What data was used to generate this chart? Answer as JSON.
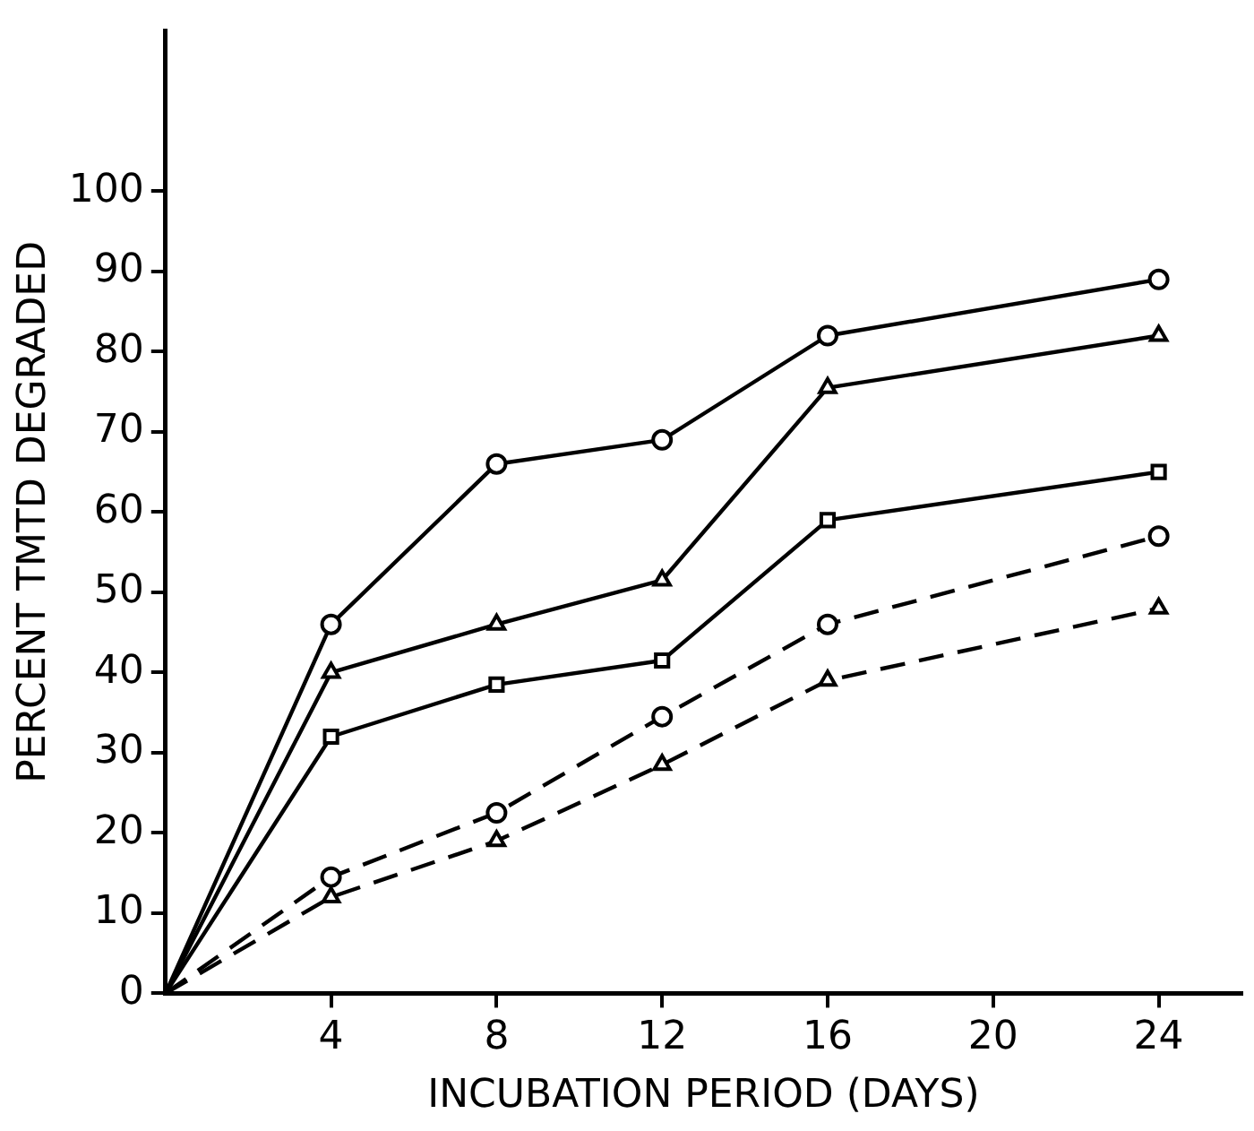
{
  "chart_data": {
    "type": "line",
    "xlabel": "INCUBATION PERIOD (DAYS)",
    "ylabel": "PERCENT TMTD DEGRADED",
    "x": [
      0,
      4,
      8,
      12,
      16,
      24
    ],
    "series": [
      {
        "color": "#000000",
        "marker": "circle",
        "line_style": "solid",
        "values": [
          0,
          46,
          66,
          69,
          82,
          89
        ]
      },
      {
        "color": "#000000",
        "marker": "triangle",
        "line_style": "solid",
        "values": [
          0,
          40,
          46,
          51.5,
          75.5,
          82
        ]
      },
      {
        "color": "#000000",
        "marker": "square",
        "line_style": "solid",
        "values": [
          0,
          32,
          38.5,
          41.5,
          59,
          65
        ]
      },
      {
        "color": "#000000",
        "marker": "circle",
        "line_style": "dashed",
        "values": [
          0,
          14.5,
          22.5,
          34.5,
          46,
          57
        ]
      },
      {
        "color": "#000000",
        "marker": "triangle",
        "line_style": "dashed",
        "values": [
          0,
          12,
          19,
          28.5,
          39,
          48
        ]
      }
    ],
    "xlim": [
      0,
      26
    ],
    "xticks": [
      4,
      8,
      12,
      16,
      20,
      24
    ],
    "ylim": [
      0,
      120
    ],
    "yticks": [
      0,
      10,
      20,
      30,
      40,
      50,
      60,
      70,
      80,
      90,
      100
    ],
    "grid": false,
    "legend": false
  }
}
